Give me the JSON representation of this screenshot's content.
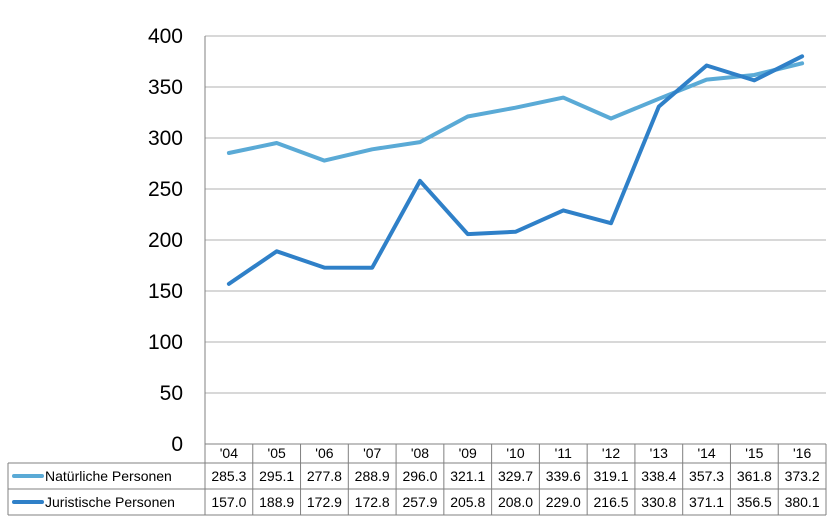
{
  "chart_data": {
    "type": "line",
    "categories": [
      "'04",
      "'05",
      "'06",
      "'07",
      "'08",
      "'09",
      "'10",
      "'11",
      "'12",
      "'13",
      "'14",
      "'15",
      "'16"
    ],
    "series": [
      {
        "name": "Natürliche Personen",
        "color": "#5aaad6",
        "values": [
          285.3,
          295.1,
          277.8,
          288.9,
          296.0,
          321.1,
          329.7,
          339.6,
          319.1,
          338.4,
          357.3,
          361.8,
          373.2
        ],
        "labels": [
          "285.3",
          "295.1",
          "277.8",
          "288.9",
          "296.0",
          "321.1",
          "329.7",
          "339.6",
          "319.1",
          "338.4",
          "357.3",
          "361.8",
          "373.2"
        ]
      },
      {
        "name": "Juristische Personen",
        "color": "#2f80c8",
        "values": [
          157.0,
          188.9,
          172.9,
          172.8,
          257.9,
          205.8,
          208.0,
          229.0,
          216.5,
          330.8,
          371.1,
          356.5,
          380.1
        ],
        "labels": [
          "157.0",
          "188.9",
          "172.9",
          "172.8",
          "257.9",
          "205.8",
          "208.0",
          "229.0",
          "216.5",
          "330.8",
          "371.1",
          "356.5",
          "380.1"
        ]
      }
    ],
    "yticks": [
      "0",
      "50",
      "100",
      "150",
      "200",
      "250",
      "300",
      "350",
      "400"
    ],
    "ylim": [
      0,
      400
    ],
    "grid": true,
    "legend": "data-table-below"
  }
}
